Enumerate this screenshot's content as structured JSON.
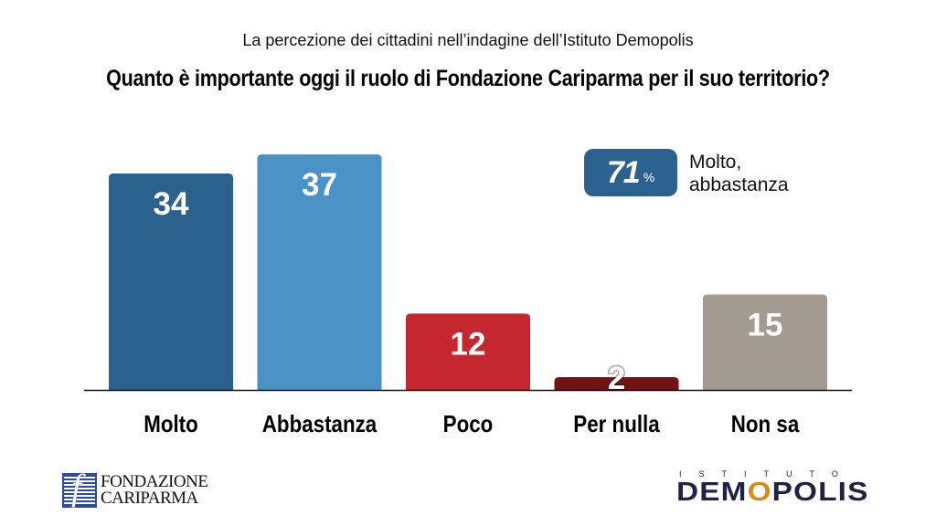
{
  "header": {
    "subtitle": "La percezione dei cittadini nell’indagine dell’Istituto Demopolis",
    "title": "Quanto è importante oggi il ruolo di Fondazione Cariparma per il suo territorio?"
  },
  "summary_badge": {
    "value": "71",
    "unit": "%",
    "label_line1": "Molto,",
    "label_line2": "abbastanza",
    "color": "#2b618e"
  },
  "chart_data": {
    "type": "bar",
    "title": "Quanto è importante oggi il ruolo di Fondazione Cariparma per il suo territorio?",
    "subtitle": "La percezione dei cittadini nell’indagine dell’Istituto Demopolis",
    "xlabel": "",
    "ylabel": "",
    "unit": "%",
    "categories": [
      "Molto",
      "Abbastanza",
      "Poco",
      "Per nulla",
      "Non sa"
    ],
    "values": [
      34,
      37,
      12,
      2,
      15
    ],
    "colors": [
      "#2a618d",
      "#4a92c6",
      "#c4282e",
      "#731316",
      "#a39a91"
    ],
    "ylim": [
      0,
      40
    ],
    "grid": false,
    "legend": "none",
    "annotations": [
      {
        "text": "71% Molto, abbastanza",
        "placement": "top-right"
      }
    ]
  },
  "logos": {
    "left": {
      "line1": "FONDAZIONE",
      "line2": "CARIPARMA"
    },
    "right": {
      "top": "ISTITUTO",
      "main_pre": "DEM",
      "main_o": "O",
      "main_post": "POLIS"
    }
  }
}
